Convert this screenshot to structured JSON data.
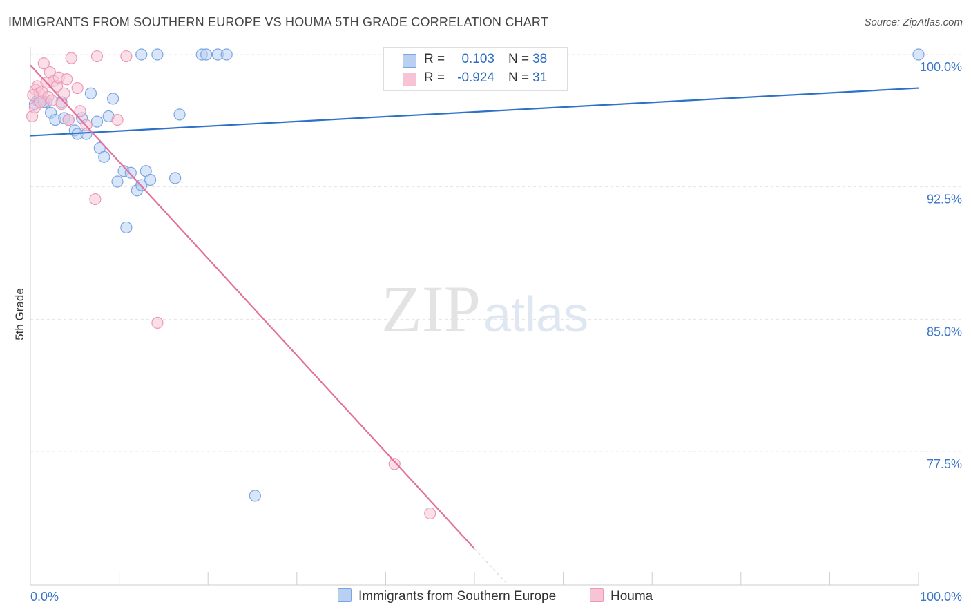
{
  "title": "IMMIGRANTS FROM SOUTHERN EUROPE VS HOUMA 5TH GRADE CORRELATION CHART",
  "source": "Source: ZipAtlas.com",
  "watermark": {
    "zip": "ZIP",
    "atlas": "atlas"
  },
  "colors": {
    "blue_fill": "#b9d0f2",
    "blue_stroke": "#7aa6e0",
    "blue_line": "#2e72c8",
    "pink_fill": "#f7c4d5",
    "pink_stroke": "#ec98b4",
    "pink_line": "#e3709b",
    "grid": "#e4e4e4",
    "tick_label": "#3c76c8"
  },
  "legend": {
    "rows": [
      {
        "r_label": "R =",
        "r_value": "0.103",
        "n_label": "N =",
        "n_value": "38"
      },
      {
        "r_label": "R =",
        "r_value": "-0.924",
        "n_label": "N =",
        "n_value": "31"
      }
    ]
  },
  "bottom_legend": {
    "series1": "Immigrants from Southern Europe",
    "series2": "Houma"
  },
  "chart_data": {
    "type": "scatter",
    "title": "IMMIGRANTS FROM SOUTHERN EUROPE VS HOUMA 5TH GRADE CORRELATION CHART",
    "xlabel": "",
    "ylabel": "5th Grade",
    "xlim": [
      0,
      100
    ],
    "ylim": [
      71.0,
      101.0
    ],
    "x_tick_labels": [
      "0.0%",
      "100.0%"
    ],
    "y_ticks": [
      100.0,
      92.5,
      85.0,
      77.5
    ],
    "y_tick_labels": [
      "100.0%",
      "92.5%",
      "85.0%",
      "77.5%"
    ],
    "grid": true,
    "legend_position": "top-center",
    "series": [
      {
        "name": "Immigrants from Southern Europe",
        "color": "#b9d0f2",
        "r": 0.103,
        "n": 38,
        "trend": {
          "x": [
            0,
            100
          ],
          "y": [
            95.4,
            98.1
          ]
        },
        "points": [
          [
            0.5,
            97.2
          ],
          [
            0.8,
            97.4
          ],
          [
            1.0,
            97.4
          ],
          [
            1.8,
            97.3
          ],
          [
            2.3,
            96.7
          ],
          [
            2.8,
            96.3
          ],
          [
            3.5,
            97.3
          ],
          [
            3.8,
            96.4
          ],
          [
            4.3,
            96.3
          ],
          [
            5.0,
            95.7
          ],
          [
            5.3,
            95.5
          ],
          [
            5.8,
            96.4
          ],
          [
            6.3,
            95.5
          ],
          [
            6.8,
            97.8
          ],
          [
            7.5,
            96.2
          ],
          [
            7.8,
            94.7
          ],
          [
            8.3,
            94.2
          ],
          [
            8.8,
            96.5
          ],
          [
            9.3,
            97.5
          ],
          [
            9.8,
            92.8
          ],
          [
            10.5,
            93.4
          ],
          [
            10.8,
            90.2
          ],
          [
            11.3,
            93.3
          ],
          [
            12.0,
            92.3
          ],
          [
            12.5,
            92.6
          ],
          [
            13.0,
            93.4
          ],
          [
            13.5,
            92.9
          ],
          [
            12.5,
            100.0
          ],
          [
            14.3,
            100.0
          ],
          [
            16.3,
            93.0
          ],
          [
            16.8,
            96.6
          ],
          [
            19.3,
            100.0
          ],
          [
            19.8,
            100.0
          ],
          [
            21.1,
            100.0
          ],
          [
            22.1,
            100.0
          ],
          [
            25.3,
            75.0
          ],
          [
            100.0,
            100.0
          ],
          [
            1.5,
            97.3
          ]
        ]
      },
      {
        "name": "Houma",
        "color": "#f7c4d5",
        "r": -0.924,
        "n": 31,
        "trend": {
          "x": [
            0,
            50
          ],
          "y": [
            99.4,
            72.0
          ]
        },
        "trend_dashed": {
          "x": [
            50,
            53.5
          ],
          "y": [
            72.0,
            70.1
          ]
        },
        "points": [
          [
            0.2,
            96.5
          ],
          [
            0.5,
            97.0
          ],
          [
            0.6,
            98.0
          ],
          [
            0.8,
            98.2
          ],
          [
            1.0,
            97.8
          ],
          [
            1.3,
            97.9
          ],
          [
            1.5,
            99.5
          ],
          [
            1.8,
            98.4
          ],
          [
            2.0,
            97.6
          ],
          [
            2.2,
            99.0
          ],
          [
            2.6,
            98.5
          ],
          [
            3.0,
            98.2
          ],
          [
            3.2,
            98.7
          ],
          [
            3.5,
            97.2
          ],
          [
            3.8,
            97.8
          ],
          [
            4.1,
            98.6
          ],
          [
            4.3,
            96.3
          ],
          [
            4.6,
            99.8
          ],
          [
            5.3,
            98.1
          ],
          [
            5.6,
            96.8
          ],
          [
            6.3,
            96.0
          ],
          [
            7.3,
            91.8
          ],
          [
            7.5,
            99.9
          ],
          [
            9.8,
            96.3
          ],
          [
            10.8,
            99.9
          ],
          [
            14.3,
            84.8
          ],
          [
            41.0,
            76.8
          ],
          [
            45.0,
            74.0
          ],
          [
            0.3,
            97.7
          ],
          [
            1.1,
            97.3
          ],
          [
            2.4,
            97.4
          ]
        ]
      }
    ]
  }
}
